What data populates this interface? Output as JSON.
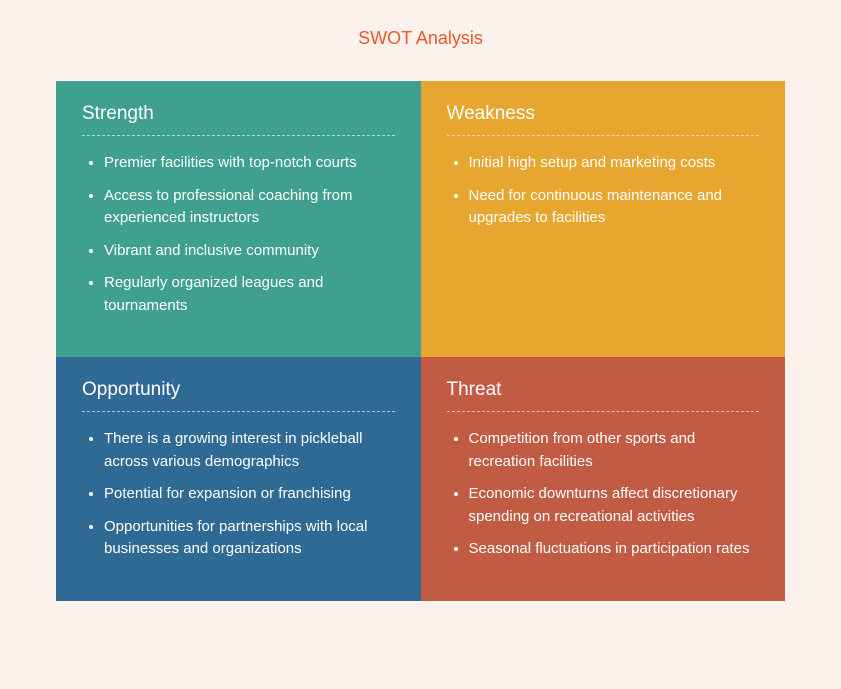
{
  "title": "SWOT Analysis",
  "page_background": "#fdf1ec",
  "title_color": "#e85a2e",
  "title_fontsize": 18,
  "heading_fontsize": 19,
  "item_fontsize": 15,
  "text_color": "#ffffff",
  "divider_style": "dashed",
  "divider_color": "rgba(255,255,255,0.6)",
  "layout": {
    "columns": 2,
    "rows": 2
  },
  "quadrants": [
    {
      "key": "strength",
      "heading": "Strength",
      "background": "#3fa08f",
      "items": [
        "Premier facilities with top-notch courts",
        "Access to professional coaching from experienced instructors",
        "Vibrant and inclusive community",
        "Regularly organized leagues and tournaments"
      ]
    },
    {
      "key": "weakness",
      "heading": "Weakness",
      "background": "#e7a62f",
      "items": [
        "Initial high setup and marketing costs",
        "Need for continuous maintenance and upgrades to facilities"
      ]
    },
    {
      "key": "opportunity",
      "heading": "Opportunity",
      "background": "#2f6a94",
      "items": [
        "There is a growing interest in pickleball across various demographics",
        "Potential for expansion or franchising",
        "Opportunities for partnerships with local businesses and organizations"
      ]
    },
    {
      "key": "threat",
      "heading": "Threat",
      "background": "#c15b43",
      "items": [
        "Competition from other sports and recreation facilities",
        "Economic downturns affect discretionary spending on recreational activities",
        "Seasonal fluctuations in participation rates"
      ]
    }
  ]
}
